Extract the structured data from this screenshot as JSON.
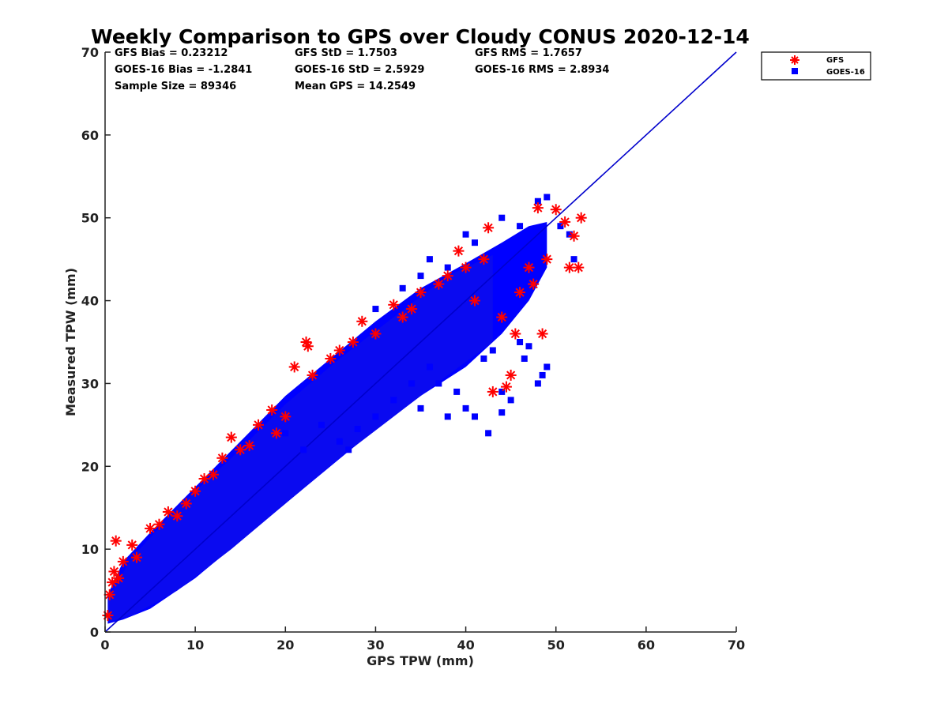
{
  "chart_data": {
    "type": "scatter",
    "title": "Weekly Comparison to GPS over Cloudy CONUS 2020-12-14",
    "xlabel": "GPS TPW (mm)",
    "ylabel": "Measured TPW (mm)",
    "xlim": [
      0,
      70
    ],
    "ylim": [
      0,
      70
    ],
    "xticks": [
      "0",
      "10",
      "20",
      "30",
      "40",
      "50",
      "60",
      "70"
    ],
    "yticks": [
      "0",
      "10",
      "20",
      "30",
      "40",
      "50",
      "60",
      "70"
    ],
    "grid": false,
    "legend_position": "outside-top-right",
    "stats": [
      [
        "GFS Bias = 0.23212",
        "GFS StD = 1.7503",
        "GFS RMS = 1.7657"
      ],
      [
        "GOES-16 Bias = -1.2841",
        "GOES-16 StD = 2.5929",
        "GOES-16 RMS = 2.8934"
      ],
      [
        "Sample Size = 89346",
        "Mean GPS = 14.2549",
        ""
      ]
    ],
    "reference_line": {
      "x": [
        0,
        70
      ],
      "y": [
        0,
        70
      ],
      "color": "#0000cc"
    },
    "series": [
      {
        "name": "GFS",
        "marker": "asterisk",
        "color": "#ff0000",
        "points": [
          [
            0.3,
            2
          ],
          [
            0.5,
            4.5
          ],
          [
            0.8,
            6
          ],
          [
            1,
            7.3
          ],
          [
            1.2,
            11
          ],
          [
            1.5,
            6.5
          ],
          [
            2,
            8.5
          ],
          [
            3,
            10.5
          ],
          [
            3.5,
            9
          ],
          [
            5,
            12.5
          ],
          [
            6,
            13
          ],
          [
            7,
            14.5
          ],
          [
            8,
            14
          ],
          [
            9,
            15.5
          ],
          [
            10,
            17
          ],
          [
            11,
            18.5
          ],
          [
            12,
            19
          ],
          [
            13,
            21
          ],
          [
            14,
            23.5
          ],
          [
            15,
            22
          ],
          [
            16,
            22.5
          ],
          [
            17,
            25
          ],
          [
            18.5,
            26.8
          ],
          [
            19,
            24
          ],
          [
            20,
            26
          ],
          [
            21,
            32
          ],
          [
            22.3,
            35
          ],
          [
            22.5,
            34.5
          ],
          [
            23,
            31
          ],
          [
            25,
            33
          ],
          [
            26,
            34
          ],
          [
            27.5,
            35
          ],
          [
            28.5,
            37.5
          ],
          [
            30,
            36
          ],
          [
            32,
            39.5
          ],
          [
            33,
            38
          ],
          [
            34,
            39
          ],
          [
            35,
            41
          ],
          [
            37,
            42
          ],
          [
            38,
            43
          ],
          [
            39.2,
            46
          ],
          [
            40,
            44
          ],
          [
            41,
            40
          ],
          [
            42,
            45
          ],
          [
            42.5,
            48.8
          ],
          [
            43,
            29
          ],
          [
            44,
            38
          ],
          [
            44.5,
            29.6
          ],
          [
            45,
            31
          ],
          [
            45.5,
            36
          ],
          [
            46,
            41
          ],
          [
            47,
            44
          ],
          [
            47.5,
            42
          ],
          [
            48,
            51.2
          ],
          [
            48.5,
            36
          ],
          [
            49,
            45
          ],
          [
            50,
            51
          ],
          [
            51,
            49.5
          ],
          [
            51.5,
            44
          ],
          [
            52,
            47.8
          ],
          [
            52.5,
            44
          ],
          [
            52.8,
            50
          ]
        ]
      },
      {
        "name": "GOES-16",
        "marker": "square",
        "color": "#0000ff",
        "outliers": [
          [
            20,
            24
          ],
          [
            22,
            22
          ],
          [
            24,
            25
          ],
          [
            26,
            23
          ],
          [
            28,
            24.5
          ],
          [
            30,
            26
          ],
          [
            32,
            28
          ],
          [
            34,
            30
          ],
          [
            35,
            27
          ],
          [
            37,
            30
          ],
          [
            38,
            26
          ],
          [
            39,
            29
          ],
          [
            40,
            27
          ],
          [
            41,
            26
          ],
          [
            42.5,
            24
          ],
          [
            44,
            29
          ],
          [
            45,
            28
          ],
          [
            48,
            30
          ],
          [
            48.5,
            31
          ],
          [
            49,
            32
          ],
          [
            42,
            33
          ],
          [
            43,
            34
          ],
          [
            46,
            35
          ],
          [
            30,
            39
          ],
          [
            33,
            41.5
          ],
          [
            35,
            43
          ],
          [
            36,
            45
          ],
          [
            38,
            44
          ],
          [
            40,
            48
          ],
          [
            41,
            47
          ],
          [
            44,
            50
          ],
          [
            46,
            49
          ],
          [
            48,
            52
          ],
          [
            49,
            52.5
          ],
          [
            50.5,
            49
          ],
          [
            51.5,
            48
          ],
          [
            52,
            45
          ],
          [
            27,
            22
          ],
          [
            36,
            32
          ],
          [
            44,
            26.5
          ],
          [
            46.5,
            33
          ],
          [
            47,
            34.5
          ]
        ]
      }
    ]
  }
}
